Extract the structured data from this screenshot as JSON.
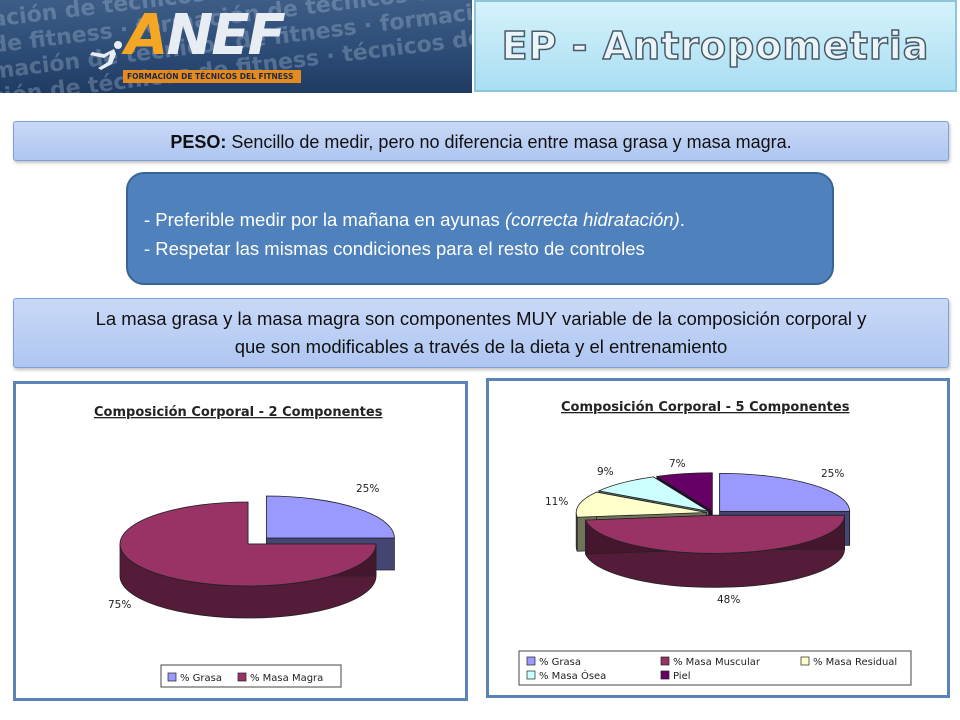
{
  "header": {
    "logo_a": "A",
    "logo_nef": "NEF",
    "logo_tagline": "FORMACIÓN DE TÉCNICOS DEL FITNESS",
    "background_text": [
      "ación de técnicos de fitness · técnicos de",
      "de fitness · formación de técnicos de fitness",
      "mación de técnicos de fitness · formación",
      "ción de técnicos de fitness · técnicos de"
    ],
    "title": "EP - Antropometria"
  },
  "peso": {
    "label": "PESO:",
    "text": " Sencillo de medir, pero no diferencia entre masa grasa y masa magra."
  },
  "tips": {
    "line1_prefix": "- Preferible medir por la mañana en ayunas ",
    "line1_italic": "(correcta hidratación)",
    "line1_suffix": ".",
    "line2": "- Respetar las mismas condiciones para el resto de controles"
  },
  "info": {
    "line1": "La masa grasa y la masa magra son componentes MUY variable de la composición corporal y",
    "line2": "que son modificables a través de la dieta y el entrenamiento"
  },
  "chart_data": [
    {
      "type": "pie",
      "title": "Composición Corporal - 2 Componentes",
      "categories": [
        "% Grasa",
        "% Masa Magra"
      ],
      "values": [
        25,
        75
      ],
      "labels": [
        "25%",
        "75%"
      ],
      "colors": [
        "#9999ff",
        "#993366"
      ],
      "exploded": [
        "% Grasa"
      ],
      "legend_position": "bottom"
    },
    {
      "type": "pie",
      "title": "Composición Corporal - 5 Componentes",
      "categories": [
        "% Grasa",
        "% Masa Muscular",
        "% Masa Residual",
        "% Masa Ósea",
        "Piel"
      ],
      "values": [
        25,
        48,
        11,
        9,
        7
      ],
      "labels": [
        "25%",
        "48%",
        "11%",
        "9%",
        "7%"
      ],
      "colors": [
        "#9999ff",
        "#993366",
        "#ffffcc",
        "#ccffff",
        "#660066"
      ],
      "legend_position": "bottom"
    }
  ]
}
